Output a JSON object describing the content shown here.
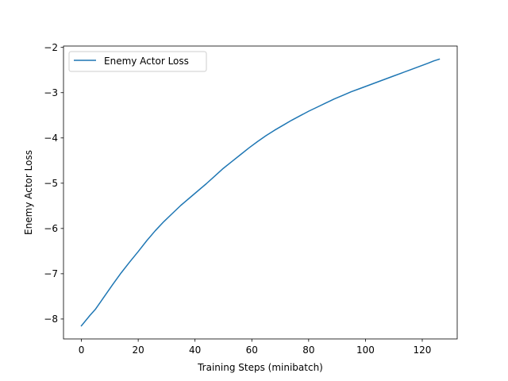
{
  "chart_data": {
    "type": "line",
    "title": "",
    "xlabel": "Training Steps (minibatch)",
    "ylabel": "Enemy Actor Loss",
    "xlim": [
      -6.3,
      132.3
    ],
    "ylim": [
      -8.44,
      -1.97
    ],
    "x_ticks": [
      0,
      20,
      40,
      60,
      80,
      100,
      120
    ],
    "y_ticks": [
      -8,
      -7,
      -6,
      -5,
      -4,
      -3,
      -2
    ],
    "x_tick_labels": [
      "0",
      "20",
      "40",
      "60",
      "80",
      "100",
      "120"
    ],
    "y_tick_labels": [
      "−8",
      "−7",
      "−6",
      "−5",
      "−4",
      "−3",
      "−2"
    ],
    "legend_position": "upper-left",
    "grid": false,
    "series": [
      {
        "name": "Enemy Actor Loss",
        "color": "#1f77b4",
        "x": [
          0,
          3,
          5,
          8,
          11,
          14,
          17,
          20,
          23,
          26,
          29,
          32,
          35,
          38,
          41,
          44,
          47,
          50,
          53,
          56,
          59,
          62,
          65,
          68,
          71,
          74,
          77,
          80,
          83,
          86,
          89,
          92,
          95,
          98,
          101,
          104,
          107,
          110,
          113,
          116,
          119,
          122,
          124,
          126
        ],
        "y": [
          -8.15,
          -7.92,
          -7.78,
          -7.51,
          -7.24,
          -6.98,
          -6.74,
          -6.51,
          -6.27,
          -6.05,
          -5.85,
          -5.67,
          -5.49,
          -5.33,
          -5.17,
          -5.01,
          -4.84,
          -4.67,
          -4.52,
          -4.37,
          -4.22,
          -4.08,
          -3.95,
          -3.83,
          -3.72,
          -3.61,
          -3.51,
          -3.41,
          -3.32,
          -3.23,
          -3.14,
          -3.06,
          -2.98,
          -2.91,
          -2.84,
          -2.77,
          -2.7,
          -2.63,
          -2.56,
          -2.49,
          -2.42,
          -2.35,
          -2.3,
          -2.26
        ]
      }
    ]
  }
}
